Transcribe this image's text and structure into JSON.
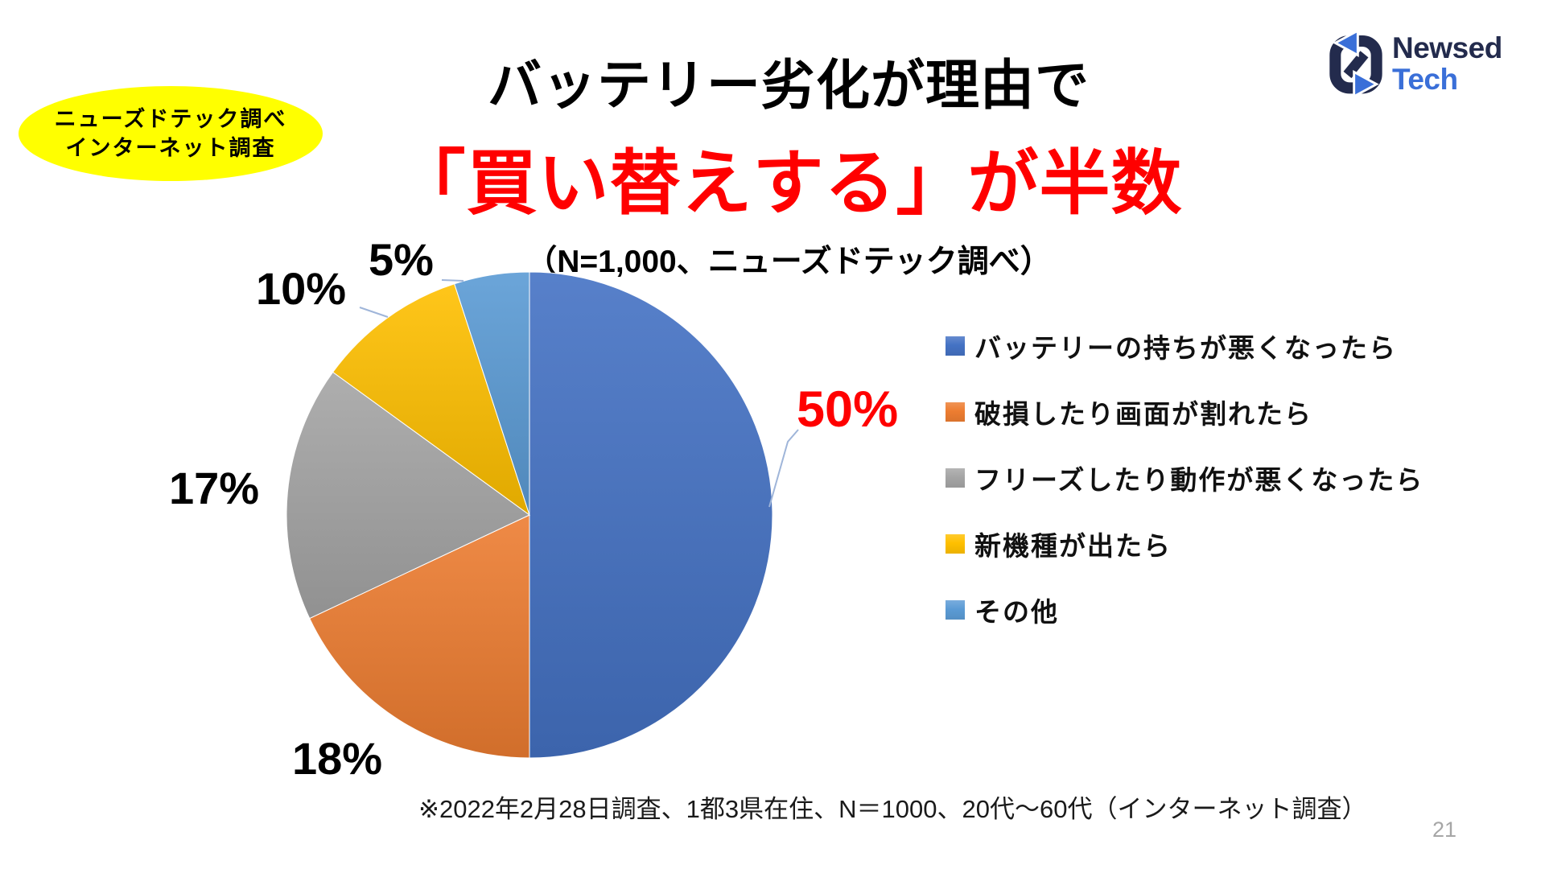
{
  "badge": {
    "line1": "ニューズドテック調べ",
    "line2": "インターネット調査",
    "bg_color": "#FFFF00",
    "text_color": "#000000"
  },
  "logo": {
    "name_top": "Newsed",
    "name_bottom": "Tech",
    "navy": "#232B4D",
    "blue": "#3A6FD8"
  },
  "title": {
    "line1": "バッテリー劣化が理由で",
    "line2": "「買い替えする」が半数",
    "line2_color": "#FF0000",
    "subtitle": "（N=1,000、ニューズドテック調べ）"
  },
  "chart_data": {
    "type": "pie",
    "start_angle_deg": 0,
    "direction": "clockwise",
    "total": 100,
    "slices": [
      {
        "label": "バッテリーの持ちが悪くなったら",
        "value": 50,
        "pct_label": "50%",
        "color": "#4472C4"
      },
      {
        "label": "破損したり画面が割れたら",
        "value": 18,
        "pct_label": "18%",
        "color": "#ED7D31"
      },
      {
        "label": "フリーズしたり動作が悪くなったら",
        "value": 17,
        "pct_label": "17%",
        "color": "#A5A5A5"
      },
      {
        "label": "新機種が出たら",
        "value": 10,
        "pct_label": "10%",
        "color": "#FFC000"
      },
      {
        "label": "その他",
        "value": 5,
        "pct_label": "5%",
        "color": "#5B9BD5"
      }
    ],
    "legend_position": "right",
    "highlight": {
      "slice_index": 0,
      "label_color": "#FF0000"
    },
    "leader_line_color": "#9FB5D9"
  },
  "footer": {
    "note": "※2022年2月28日調査、1都3県在住、N＝1000、20代～60代（インターネット調査）",
    "page_number": "21"
  }
}
